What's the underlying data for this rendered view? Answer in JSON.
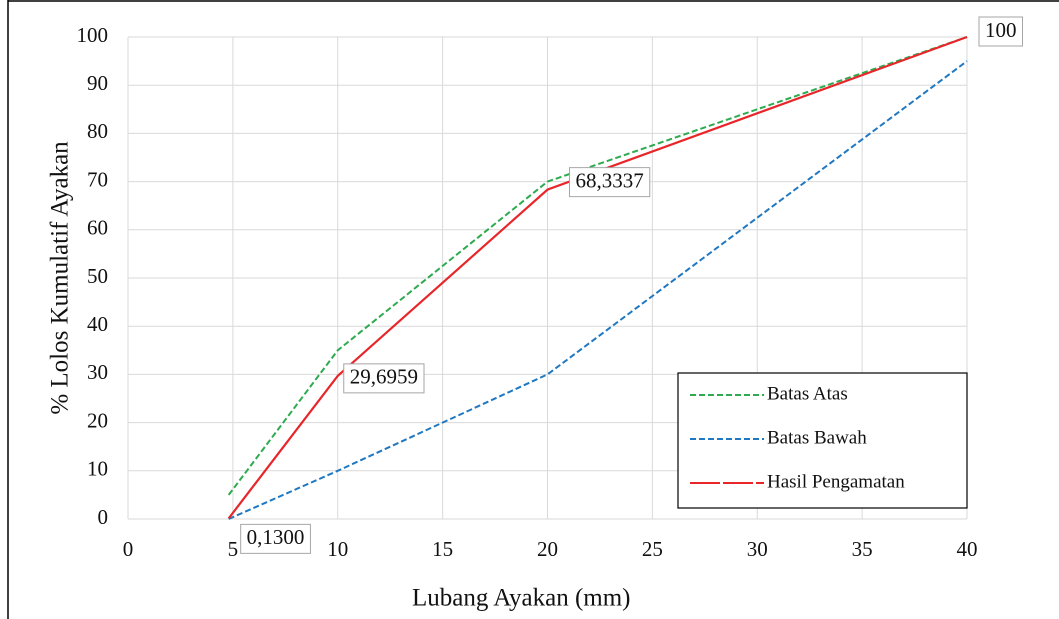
{
  "chart_data": {
    "type": "line",
    "x": [
      4.8,
      10,
      20,
      40
    ],
    "xlabel": "Lubang Ayakan (mm)",
    "ylabel": "% Lolos Kumulatif Ayakan",
    "xlim": [
      0,
      40
    ],
    "xticks": [
      0,
      5,
      10,
      15,
      20,
      25,
      30,
      35,
      40
    ],
    "ylim": [
      0,
      100
    ],
    "yticks": [
      0,
      10,
      20,
      30,
      40,
      50,
      60,
      70,
      80,
      90,
      100
    ],
    "grid": true,
    "legend": "lower right",
    "series": [
      {
        "name": "Batas Atas",
        "color": "#2eaa4f",
        "dash": true,
        "values": [
          5,
          35,
          70,
          100
        ]
      },
      {
        "name": "Batas Bawah",
        "color": "#1f78c1",
        "dash": true,
        "values": [
          0,
          10,
          30,
          95
        ]
      },
      {
        "name": "Hasil Pengamatan",
        "color": "#e8262a",
        "dash": false,
        "values": [
          0.13,
          29.6959,
          68.3337,
          100
        ],
        "value_labels": [
          "0,1300",
          "29,6959",
          "68,3337",
          "100"
        ]
      }
    ]
  }
}
